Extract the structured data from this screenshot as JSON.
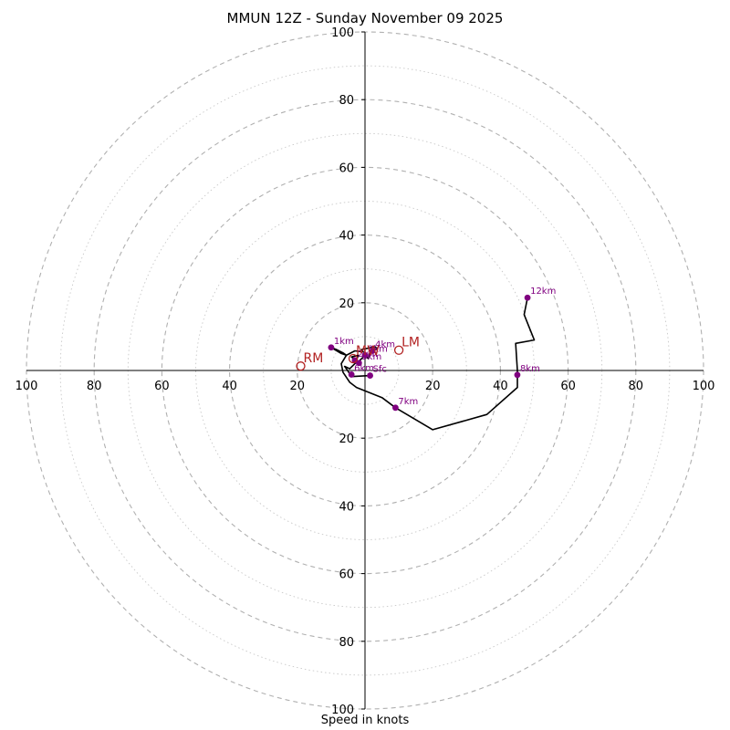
{
  "title": "MMUN 12Z - Sunday November 09 2025",
  "footer": "Speed in knots",
  "colors": {
    "hodograph": "#000000",
    "height_marker": "#800080",
    "motion_marker": "#b22222",
    "ring_major": "#b0b0b0",
    "ring_minor": "#c8c8c8"
  },
  "chart_data": {
    "type": "hodograph",
    "units": "knots",
    "axis_range": [
      -100,
      100
    ],
    "ring_major_step": 20,
    "ring_minor_step": 10,
    "tick_labels": {
      "x_left": [
        "100",
        "80",
        "60",
        "40",
        "20"
      ],
      "x_right": [
        "20",
        "40",
        "60",
        "80",
        "100"
      ],
      "y_up": [
        "20",
        "40",
        "60",
        "80",
        "100"
      ],
      "y_down": [
        "20",
        "40",
        "60",
        "80",
        "100"
      ]
    },
    "hodograph": [
      [
        1.5,
        -1.5
      ],
      [
        -4,
        -1.8
      ],
      [
        -5.5,
        0.5
      ],
      [
        -6,
        1.2
      ],
      [
        -4.5,
        0.5
      ],
      [
        -2.8,
        2.2
      ],
      [
        -2,
        4.5
      ],
      [
        -4,
        4
      ],
      [
        -2,
        2.5
      ],
      [
        0,
        4.5
      ],
      [
        1,
        3.5
      ],
      [
        1.5,
        5.2
      ],
      [
        3.5,
        6.5
      ],
      [
        3,
        7
      ],
      [
        -1,
        6.2
      ],
      [
        -0.5,
        5.5
      ],
      [
        -3,
        5.8
      ],
      [
        -5.5,
        4.5
      ],
      [
        -6.5,
        5.2
      ],
      [
        -8.5,
        6.2
      ],
      [
        -10,
        6.8
      ],
      [
        -7,
        5
      ],
      [
        -5.5,
        4.5
      ],
      [
        -7,
        2
      ],
      [
        -6.5,
        -0.5
      ],
      [
        -4.5,
        -3.5
      ],
      [
        -2.5,
        -5
      ],
      [
        5,
        -8
      ],
      [
        9,
        -11
      ],
      [
        20,
        -17.5
      ],
      [
        36,
        -13
      ],
      [
        45,
        -5
      ],
      [
        45,
        0
      ],
      [
        44.5,
        8
      ],
      [
        50,
        9
      ],
      [
        47,
        16.5
      ],
      [
        48,
        21.5
      ]
    ],
    "height_markers": [
      {
        "label": "Sfc",
        "u": 1.5,
        "v": -1.5
      },
      {
        "label": "1km",
        "u": -10,
        "v": 6.8
      },
      {
        "label": "2km",
        "u": -3,
        "v": 3
      },
      {
        "label": "3km",
        "u": 0,
        "v": 4.5
      },
      {
        "label": "4km",
        "u": 2.2,
        "v": 5.8
      },
      {
        "label": "5km",
        "u": -1.8,
        "v": 2.2
      },
      {
        "label": "6km",
        "u": -4,
        "v": -1.2
      },
      {
        "label": "7km",
        "u": 9,
        "v": -11
      },
      {
        "label": "8km",
        "u": 45,
        "v": -1.3
      },
      {
        "label": "12km",
        "u": 48,
        "v": 21.5
      }
    ],
    "storm_motion": [
      {
        "label": "RM",
        "u": -19,
        "v": 1.3
      },
      {
        "label": "LM",
        "u": 10,
        "v": 6
      },
      {
        "label": "MW",
        "u": -3.5,
        "v": 3.5
      }
    ]
  }
}
